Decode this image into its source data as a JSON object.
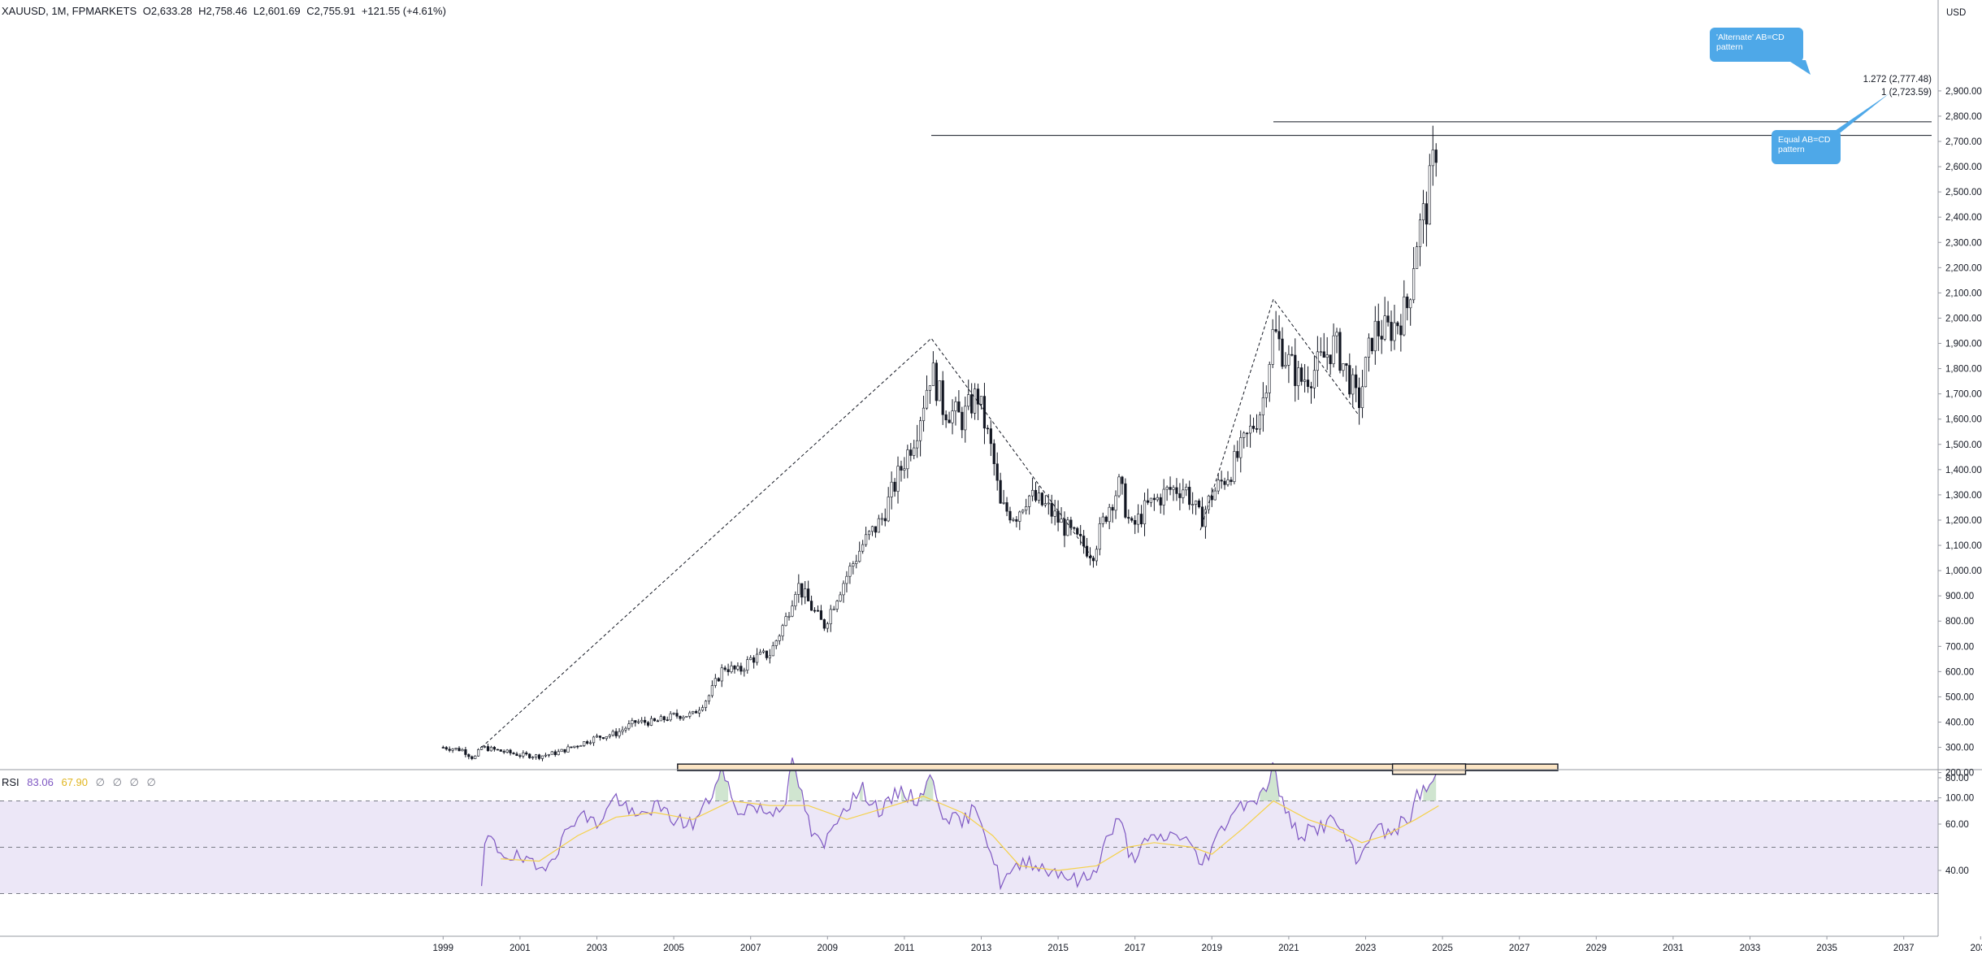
{
  "header": {
    "symbol": "XAUUSD, 1M, FPMARKETS",
    "open": "O2,633.28",
    "high": "H2,758.46",
    "low": "L2,601.69",
    "close": "C2,755.91",
    "change": "+121.55 (+4.61%)"
  },
  "currency": "USD",
  "rsi_header": {
    "name": "RSI",
    "value": "83.06",
    "ma_value": "67.90",
    "extra": [
      "∅",
      "∅",
      "∅",
      "∅"
    ]
  },
  "annotations": {
    "alternate_callout": "'Alternate' AB=CD pattern",
    "equal_callout": "Equal AB=CD pattern",
    "fib_1272": "1.272 (2,777.48)",
    "fib_1": "1 (2,723.59)"
  },
  "colors": {
    "candle": "#131722",
    "rsi_line": "#7e57c2",
    "rsi_ma": "#f5d14a",
    "rsi_band": "#ece7f7",
    "callout": "#4ea8e8",
    "box_fill": "#fce5c4",
    "overbought_fill": "#a9cfa9"
  },
  "chart_data": [
    {
      "type": "candlestick",
      "title": "XAUUSD, 1M, FPMARKETS",
      "y_ticks": [
        "100.00",
        "200.00",
        "300.00",
        "400.00",
        "500.00",
        "600.00",
        "700.00",
        "800.00",
        "900.00",
        "1,000.00",
        "1,100.00",
        "1,200.00",
        "1,300.00",
        "1,400.00",
        "1,500.00",
        "1,600.00",
        "1,700.00",
        "1,800.00",
        "1,900.00",
        "2,000.00",
        "2,100.00",
        "2,200.00",
        "2,300.00",
        "2,400.00",
        "2,500.00",
        "2,600.00",
        "2,700.00",
        "2,800.00",
        "2,900.00"
      ],
      "x_ticks": [
        "1999",
        "2001",
        "2003",
        "2005",
        "2007",
        "2009",
        "2011",
        "2013",
        "2015",
        "2017",
        "2019",
        "2021",
        "2023",
        "2025",
        "2027",
        "2029",
        "2031",
        "2033",
        "2035",
        "2037",
        "2039"
      ],
      "ylim": [
        0,
        2950
      ],
      "xlim": [
        1997.7,
        2039.2
      ],
      "grid": false,
      "price_path": [
        [
          1999.0,
          300
        ],
        [
          1999.5,
          290
        ],
        [
          1999.8,
          255
        ],
        [
          2000.0,
          300
        ],
        [
          2000.5,
          285
        ],
        [
          2001.0,
          270
        ],
        [
          2001.5,
          265
        ],
        [
          2002.0,
          280
        ],
        [
          2002.5,
          310
        ],
        [
          2003.0,
          340
        ],
        [
          2003.5,
          355
        ],
        [
          2004.0,
          400
        ],
        [
          2004.5,
          400
        ],
        [
          2005.0,
          425
        ],
        [
          2005.5,
          430
        ],
        [
          2005.9,
          500
        ],
        [
          2006.3,
          620
        ],
        [
          2006.7,
          600
        ],
        [
          2007.0,
          650
        ],
        [
          2007.5,
          670
        ],
        [
          2007.9,
          800
        ],
        [
          2008.2,
          950
        ],
        [
          2008.6,
          850
        ],
        [
          2008.9,
          780
        ],
        [
          2009.3,
          920
        ],
        [
          2009.9,
          1100
        ],
        [
          2010.4,
          1200
        ],
        [
          2010.9,
          1400
        ],
        [
          2011.3,
          1550
        ],
        [
          2011.7,
          1800
        ],
        [
          2012.0,
          1650
        ],
        [
          2012.5,
          1600
        ],
        [
          2012.9,
          1700
        ],
        [
          2013.3,
          1450
        ],
        [
          2013.5,
          1250
        ],
        [
          2013.9,
          1220
        ],
        [
          2014.2,
          1300
        ],
        [
          2014.7,
          1250
        ],
        [
          2015.0,
          1200
        ],
        [
          2015.5,
          1120
        ],
        [
          2015.9,
          1070
        ],
        [
          2016.3,
          1250
        ],
        [
          2016.6,
          1340
        ],
        [
          2016.9,
          1160
        ],
        [
          2017.3,
          1250
        ],
        [
          2017.9,
          1320
        ],
        [
          2018.3,
          1330
        ],
        [
          2018.7,
          1200
        ],
        [
          2019.0,
          1300
        ],
        [
          2019.5,
          1400
        ],
        [
          2019.9,
          1520
        ],
        [
          2020.3,
          1650
        ],
        [
          2020.6,
          1950
        ],
        [
          2020.9,
          1850
        ],
        [
          2021.3,
          1750
        ],
        [
          2021.7,
          1800
        ],
        [
          2022.2,
          1900
        ],
        [
          2022.6,
          1750
        ],
        [
          2022.8,
          1650
        ],
        [
          2023.2,
          1950
        ],
        [
          2023.6,
          1950
        ],
        [
          2023.9,
          2000
        ],
        [
          2024.1,
          2050
        ],
        [
          2024.3,
          2300
        ],
        [
          2024.6,
          2450
        ],
        [
          2024.8,
          2650
        ],
        [
          2024.9,
          2755.91
        ]
      ],
      "abcd_patterns": [
        {
          "name": "Equal AB=CD",
          "points": [
            [
              2000.0,
              300
            ],
            [
              2011.7,
              1920
            ],
            [
              2015.9,
              1050
            ],
            [
              2024.9,
              2723.59
            ]
          ]
        },
        {
          "name": "'Alternate' AB=CD",
          "points": [
            [
              2018.7,
              1160
            ],
            [
              2020.6,
              2075
            ],
            [
              2022.8,
              1620
            ],
            [
              2024.9,
              2777.48
            ]
          ]
        }
      ],
      "levels": [
        {
          "label": "1.272 (2,777.48)",
          "value": 2777.48,
          "from": 2020.6
        },
        {
          "label": "1 (2,723.59)",
          "value": 2723.59,
          "from": 2011.7
        }
      ]
    },
    {
      "type": "line",
      "title": "RSI",
      "y_ticks": [
        "40.00",
        "60.00",
        "80.00"
      ],
      "ylim": [
        25,
        95
      ],
      "bands": {
        "upper": 70,
        "middle": 50,
        "lower": 30
      },
      "series": [
        {
          "name": "RSI",
          "points": [
            [
              2000.0,
              30
            ],
            [
              2000.1,
              55
            ],
            [
              2000.5,
              48
            ],
            [
              2001.0,
              45
            ],
            [
              2001.5,
              40
            ],
            [
              2002.0,
              50
            ],
            [
              2002.5,
              65
            ],
            [
              2003.0,
              60
            ],
            [
              2003.5,
              72
            ],
            [
              2004.0,
              62
            ],
            [
              2004.5,
              68
            ],
            [
              2005.0,
              62
            ],
            [
              2005.5,
              60
            ],
            [
              2005.9,
              70
            ],
            [
              2006.3,
              84
            ],
            [
              2006.6,
              65
            ],
            [
              2007.0,
              68
            ],
            [
              2007.5,
              65
            ],
            [
              2007.9,
              70
            ],
            [
              2008.1,
              87
            ],
            [
              2008.6,
              55
            ],
            [
              2008.9,
              50
            ],
            [
              2009.3,
              65
            ],
            [
              2009.9,
              75
            ],
            [
              2010.4,
              65
            ],
            [
              2010.9,
              75
            ],
            [
              2011.3,
              70
            ],
            [
              2011.7,
              80
            ],
            [
              2012.0,
              65
            ],
            [
              2012.5,
              60
            ],
            [
              2012.9,
              68
            ],
            [
              2013.3,
              45
            ],
            [
              2013.5,
              35
            ],
            [
              2013.9,
              40
            ],
            [
              2014.2,
              45
            ],
            [
              2014.7,
              40
            ],
            [
              2015.0,
              40
            ],
            [
              2015.5,
              35
            ],
            [
              2015.9,
              38
            ],
            [
              2016.3,
              55
            ],
            [
              2016.6,
              62
            ],
            [
              2016.9,
              45
            ],
            [
              2017.3,
              52
            ],
            [
              2017.9,
              55
            ],
            [
              2018.3,
              55
            ],
            [
              2018.7,
              42
            ],
            [
              2019.0,
              50
            ],
            [
              2019.5,
              65
            ],
            [
              2019.9,
              70
            ],
            [
              2020.3,
              72
            ],
            [
              2020.6,
              85
            ],
            [
              2020.9,
              65
            ],
            [
              2021.3,
              55
            ],
            [
              2021.7,
              58
            ],
            [
              2022.2,
              62
            ],
            [
              2022.6,
              50
            ],
            [
              2022.8,
              42
            ],
            [
              2023.2,
              60
            ],
            [
              2023.6,
              55
            ],
            [
              2023.9,
              60
            ],
            [
              2024.1,
              60
            ],
            [
              2024.3,
              72
            ],
            [
              2024.6,
              75
            ],
            [
              2024.9,
              83.06
            ]
          ]
        },
        {
          "name": "RSI-based MA",
          "points": [
            [
              2000.5,
              45
            ],
            [
              2001.5,
              44
            ],
            [
              2002.5,
              55
            ],
            [
              2003.5,
              63
            ],
            [
              2004.5,
              65
            ],
            [
              2005.5,
              62
            ],
            [
              2006.5,
              70
            ],
            [
              2007.5,
              68
            ],
            [
              2008.5,
              68
            ],
            [
              2009.5,
              62
            ],
            [
              2010.5,
              67
            ],
            [
              2011.5,
              72
            ],
            [
              2012.5,
              65
            ],
            [
              2013.3,
              55
            ],
            [
              2014.0,
              42
            ],
            [
              2015.0,
              40
            ],
            [
              2016.0,
              42
            ],
            [
              2016.8,
              50
            ],
            [
              2017.5,
              52
            ],
            [
              2018.5,
              50
            ],
            [
              2019.0,
              47
            ],
            [
              2019.8,
              58
            ],
            [
              2020.6,
              70
            ],
            [
              2021.5,
              62
            ],
            [
              2022.2,
              58
            ],
            [
              2022.9,
              52
            ],
            [
              2023.5,
              55
            ],
            [
              2024.3,
              62
            ],
            [
              2024.9,
              67.9
            ]
          ]
        }
      ],
      "resistance_zone": {
        "from": 2005.1,
        "to": 2028.0,
        "value": 84.5
      },
      "highlight_zone": {
        "from": 2023.7,
        "to": 2025.6,
        "low": 81.5,
        "high": 86
      }
    }
  ]
}
